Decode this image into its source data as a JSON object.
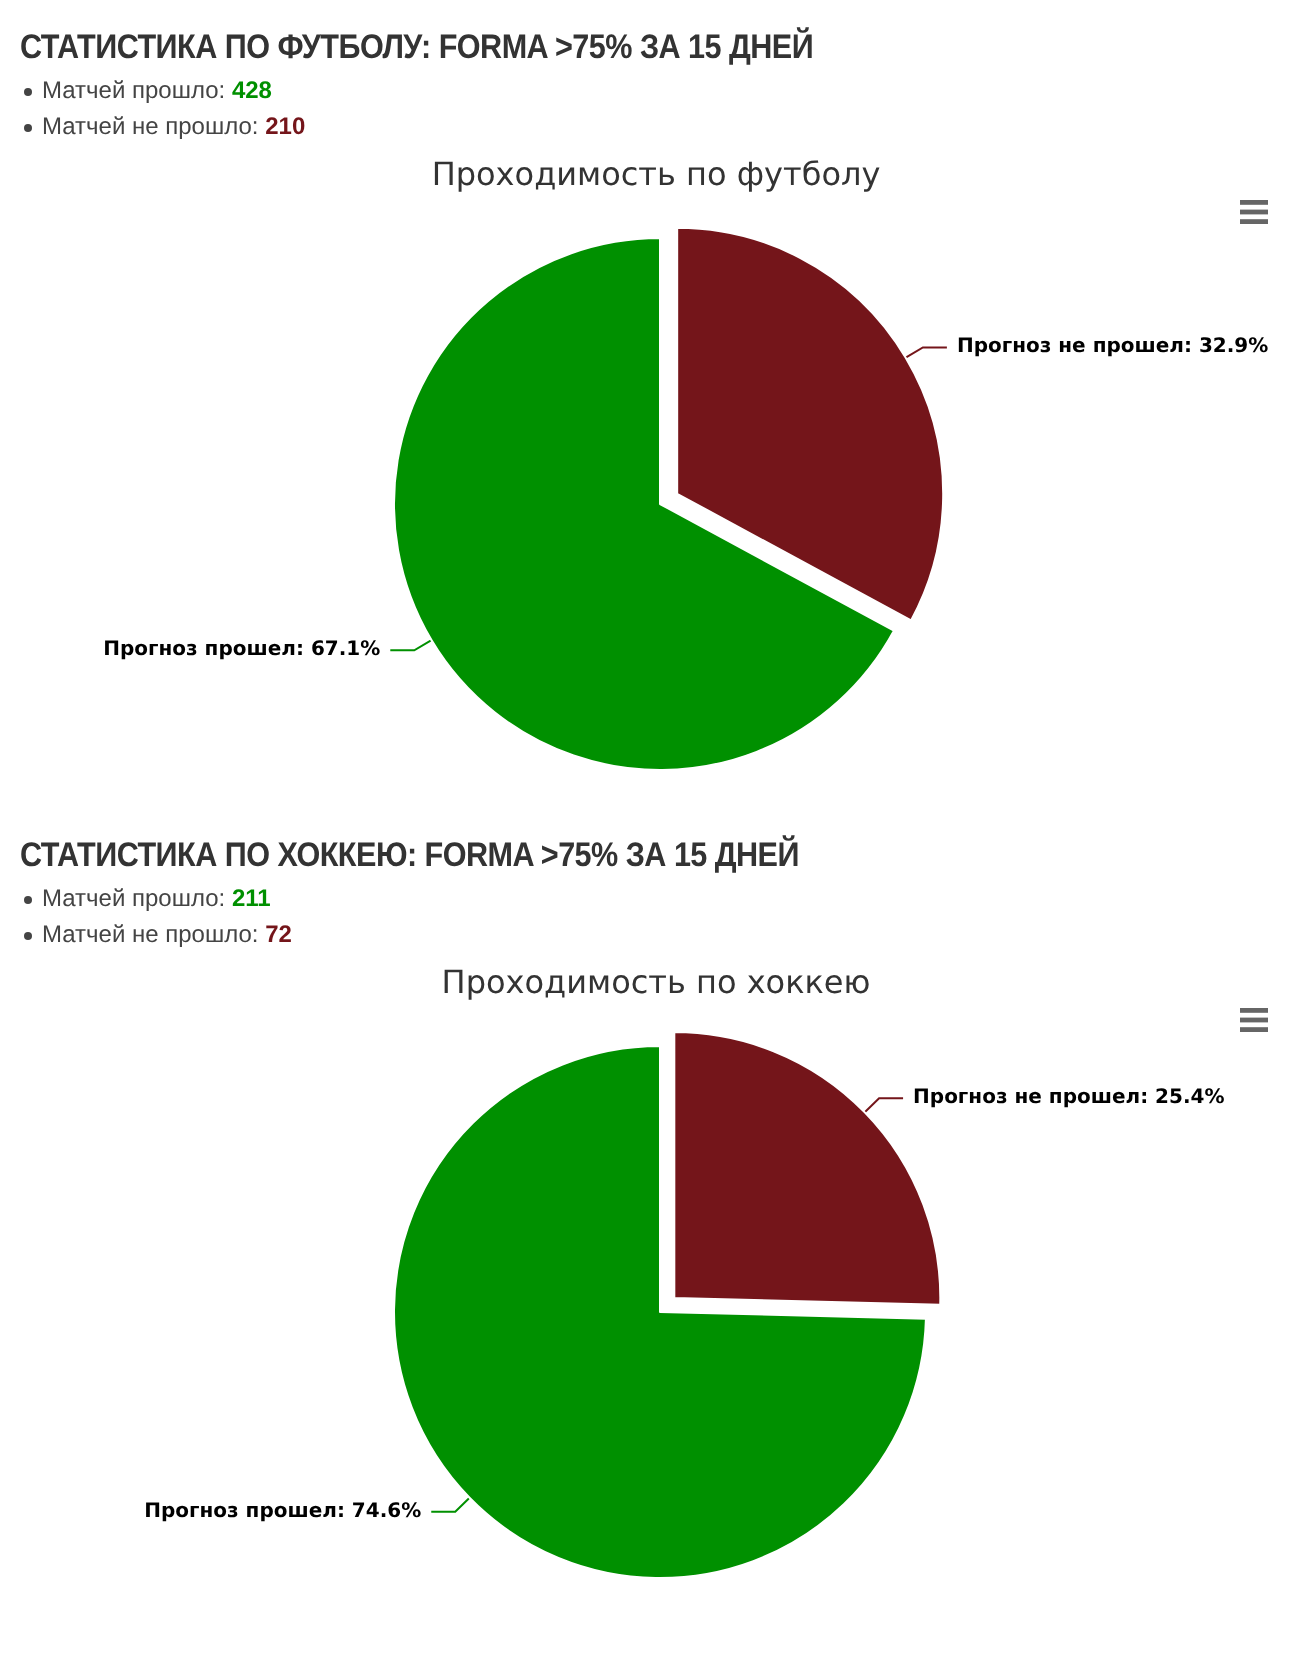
{
  "chart_data": [
    {
      "type": "pie",
      "title": "СТАТИСТИКА ПО ФУТБОЛУ: FORMA >75% ЗА 15 ДНЕЙ",
      "subtitle": "Проходимость по футболу",
      "annotations": [
        "Матчей прошло: 428",
        "Матчей не прошло: 210"
      ],
      "categories": [
        "Прогноз не прошел",
        "Прогноз прошел"
      ],
      "values": [
        32.9,
        67.1
      ],
      "value_labels": [
        "32.9%",
        "67.1%"
      ],
      "colors": [
        "#74151a",
        "#009000"
      ]
    },
    {
      "type": "pie",
      "title": "СТАТИСТИКА ПО ХОККЕЮ: FORMA >75% ЗА 15 ДНЕЙ",
      "subtitle": "Проходимость по хоккею",
      "annotations": [
        "Матчей прошло: 211",
        "Матчей не прошло: 72"
      ],
      "categories": [
        "Прогноз не прошел",
        "Прогноз прошел"
      ],
      "values": [
        25.4,
        74.6
      ],
      "value_labels": [
        "25.4%",
        "74.6%"
      ],
      "colors": [
        "#74151a",
        "#009000"
      ]
    }
  ]
}
